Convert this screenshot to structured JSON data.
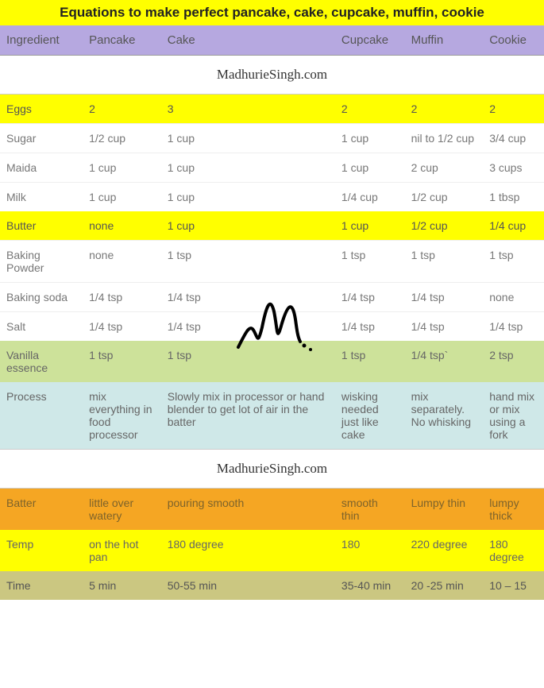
{
  "title": "Equations to make perfect pancake, cake, cupcake, muffin, cookie",
  "columns": [
    "Ingredient",
    "Pancake",
    "Cake",
    "Cupcake",
    "Muffin",
    "Cookie"
  ],
  "watermark": "MadhurieSingh.com",
  "rows": [
    {
      "style": "row-yellow",
      "cells": [
        "Eggs",
        "2",
        "3",
        "2",
        "2",
        "2"
      ]
    },
    {
      "style": "row-white",
      "cells": [
        "Sugar",
        "1/2 cup",
        "1 cup",
        "1 cup",
        "nil to 1/2 cup",
        "3/4 cup"
      ]
    },
    {
      "style": "row-white",
      "cells": [
        "Maida",
        "1 cup",
        "1 cup",
        "1 cup",
        "2 cup",
        "3 cups"
      ]
    },
    {
      "style": "row-white",
      "cells": [
        "Milk",
        "1 cup",
        "1 cup",
        "1/4 cup",
        "1/2 cup",
        "1 tbsp"
      ]
    },
    {
      "style": "row-yellow",
      "cells": [
        "Butter",
        "none",
        "1 cup",
        "1 cup",
        "1/2 cup",
        "1/4 cup"
      ]
    },
    {
      "style": "row-white",
      "cells": [
        "Baking Powder",
        "none",
        "1 tsp",
        "1 tsp",
        "1 tsp",
        "1 tsp"
      ]
    },
    {
      "style": "row-white",
      "cells": [
        "Baking soda",
        "1/4 tsp",
        "1/4 tsp",
        "1/4 tsp",
        "1/4 tsp",
        "none"
      ]
    },
    {
      "style": "row-white",
      "cells": [
        "Salt",
        "1/4 tsp",
        "1/4 tsp",
        "1/4 tsp",
        "1/4 tsp",
        "1/4 tsp"
      ]
    },
    {
      "style": "row-lightgreen",
      "cells": [
        "Vanilla essence",
        "1 tsp",
        "1 tsp",
        "1 tsp",
        "1/4 tsp`",
        "2 tsp"
      ]
    },
    {
      "style": "row-blue",
      "cells": [
        "Process",
        "mix everything in food processor",
        "Slowly mix in processor or hand blender to get lot of air in the batter",
        "wisking needed just like cake",
        "mix separately. No whisking",
        "hand mix or mix using a fork"
      ]
    },
    {
      "style": "watermark"
    },
    {
      "style": "row-orange",
      "cells": [
        "Batter",
        "little over watery",
        "pouring smooth",
        "smooth thin",
        "Lumpy thin",
        "lumpy thick"
      ]
    },
    {
      "style": "row-yellow2",
      "cells": [
        "Temp",
        "on the hot pan",
        "180 degree",
        "180",
        "220 degree",
        "180 degree"
      ]
    },
    {
      "style": "row-olive",
      "cells": [
        "Time",
        "5 min",
        "50-55 min",
        "35-40 min",
        "20 -25 min",
        "10 – 15"
      ]
    }
  ],
  "colors": {
    "title_bg": "#ffff00",
    "header_bg": "#b6a8e0",
    "yellow": "#ffff00",
    "white": "#ffffff",
    "lightgreen": "#cde29a",
    "blue": "#cfe8e8",
    "orange": "#f5a623",
    "olive": "#cbc781"
  }
}
